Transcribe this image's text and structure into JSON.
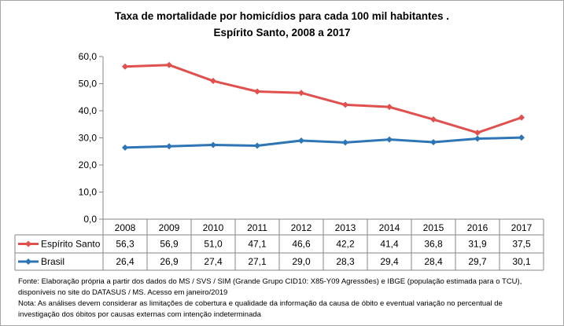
{
  "chart_data": {
    "type": "line",
    "title": "Taxa de mortalidade por homicídios para cada 100 mil habitantes .",
    "subtitle": "Espírito Santo, 2008 a 2017",
    "categories": [
      "2008",
      "2009",
      "2010",
      "2011",
      "2012",
      "2013",
      "2014",
      "2015",
      "2016",
      "2017"
    ],
    "series": [
      {
        "name": "Espírito Santo",
        "color": "#E0504F",
        "values": [
          56.3,
          56.9,
          51.0,
          47.1,
          46.6,
          42.2,
          41.4,
          36.8,
          31.9,
          37.5
        ],
        "labels": [
          "56,3",
          "56,9",
          "51,0",
          "47,1",
          "46,6",
          "42,2",
          "41,4",
          "36,8",
          "31,9",
          "37,5"
        ]
      },
      {
        "name": "Brasil",
        "color": "#2E75B6",
        "values": [
          26.4,
          26.9,
          27.4,
          27.1,
          29.0,
          28.3,
          29.4,
          28.4,
          29.7,
          30.1
        ],
        "labels": [
          "26,4",
          "26,9",
          "27,4",
          "27,1",
          "29,0",
          "28,3",
          "29,4",
          "28,4",
          "29,7",
          "30,1"
        ]
      }
    ],
    "ylim": [
      0,
      60
    ],
    "yticks": [
      "0,0",
      "10,0",
      "20,0",
      "30,0",
      "40,0",
      "50,0",
      "60,0"
    ],
    "grid": false,
    "legend": "data-table"
  },
  "footer": {
    "line1": "Fonte: Elaboração própria a partir dos dados do MS / SVS / SIM (Grande Grupo CID10: X85-Y09 Agressões) e IBGE (população estimada para o TCU),",
    "line2": "disponíveis  no site do DATASUS / MS. Acesso em janeiro/2019",
    "line3": "Nota:  As análises devem considerar as limitações de cobertura e qualidade da informação da causa de óbito e eventual variação no percentual de",
    "line4": "investigação dos óbitos  por causas externas com intenção  indeterminada"
  }
}
